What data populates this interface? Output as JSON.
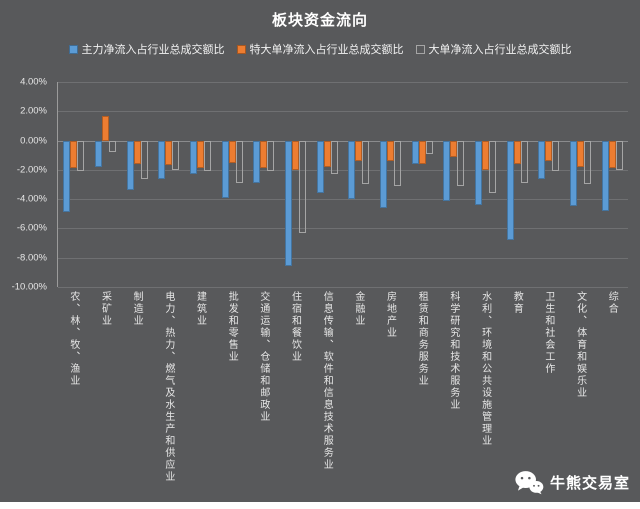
{
  "watermark": {
    "label": "牛熊交易室",
    "icon": "wechat-logo"
  },
  "chart_data": {
    "type": "bar",
    "title": "板块资金流向",
    "xlabel": "",
    "ylabel": "",
    "ylim": [
      -10,
      4
    ],
    "ytick_step": 2,
    "ytick_labels": [
      "4.00%",
      "2.00%",
      "0.00%",
      "-2.00%",
      "-4.00%",
      "-6.00%",
      "-8.00%",
      "-10.00%"
    ],
    "grid": true,
    "legend_position": "top",
    "categories": [
      "农、林、牧、渔业",
      "采矿业",
      "制造业",
      "电力、热力、燃气及水生产和供应业",
      "建筑业",
      "批发和零售业",
      "交通运输、仓储和邮政业",
      "住宿和餐饮业",
      "信息传输、软件和信息技术服务业",
      "金融业",
      "房地产业",
      "租赁和商务服务业",
      "科学研究和技术服务业",
      "水利、环境和公共设施管理业",
      "教育",
      "卫生和社会工作",
      "文化、体育和娱乐业",
      "综合"
    ],
    "series": [
      {
        "name": "主力净流入占行业总成交额比",
        "color": "#5B9BD5",
        "style": "solid",
        "values": [
          -4.9,
          -1.8,
          -3.4,
          -2.6,
          -2.3,
          -3.9,
          -2.9,
          -8.6,
          -3.6,
          -4.0,
          -4.6,
          -1.6,
          -4.1,
          -4.4,
          -6.8,
          -2.6,
          -4.5,
          -4.8
        ]
      },
      {
        "name": "特大单净流入占行业总成交额比",
        "color": "#ED7D31",
        "style": "solid",
        "values": [
          -1.9,
          1.7,
          -1.6,
          -1.7,
          -1.9,
          -1.5,
          -1.9,
          -2.0,
          -1.8,
          -1.4,
          -1.4,
          -1.6,
          -1.1,
          -2.0,
          -1.6,
          -1.4,
          -1.8,
          -1.9
        ]
      },
      {
        "name": "大单净流入占行业总成交额比",
        "color": "#A5A5A5",
        "style": "outline",
        "values": [
          -2.1,
          -0.8,
          -2.6,
          -2.0,
          -2.1,
          -2.9,
          -2.1,
          -6.3,
          -2.3,
          -3.0,
          -3.1,
          -0.9,
          -3.1,
          -3.6,
          -2.9,
          -2.1,
          -3.0,
          -2.0
        ]
      }
    ],
    "colors": {
      "background": "#58595B",
      "gridline": "#6F7072",
      "axis_text": "#E6E6E6",
      "title_text": "#FFFFFF"
    }
  }
}
